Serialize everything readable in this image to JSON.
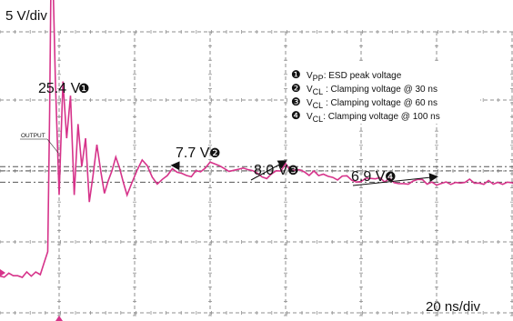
{
  "chart_data": {
    "type": "line",
    "y_scale_label": "5 V/div",
    "x_scale_label": "20 ns/div",
    "trace_label": "OUTPUT",
    "grid": true,
    "series": [
      {
        "x": [
          -60,
          -30,
          -5,
          -3,
          -2.5,
          -2,
          -1,
          0,
          1,
          2,
          3,
          4,
          5,
          6,
          7,
          8,
          10,
          12,
          15,
          18,
          22,
          26,
          30,
          35,
          40,
          45,
          50,
          55,
          60,
          70,
          80,
          90,
          100,
          110,
          120,
          130,
          140,
          150,
          160,
          170,
          180,
          190,
          200,
          210,
          220,
          230,
          240
        ],
        "values": [
          0.3,
          0.3,
          0.4,
          2.0,
          12.0,
          25.4,
          14.0,
          6.0,
          14.0,
          10.0,
          13.0,
          6.0,
          11.0,
          8.0,
          10.0,
          5.5,
          9.5,
          6.0,
          8.8,
          6.2,
          8.4,
          6.8,
          7.7,
          7.4,
          8.2,
          7.5,
          8.0,
          7.2,
          8.0,
          7.3,
          7.1,
          7.0,
          6.9,
          7.0,
          6.9,
          7.0,
          6.9,
          7.0,
          6.8,
          7.0,
          6.9,
          7.0,
          6.9,
          6.9,
          7.0,
          6.9,
          6.9
        ]
      }
    ],
    "reference_levels": [
      7.7,
      8.0,
      6.9
    ],
    "annotations": [
      {
        "text": "25.4 V",
        "marker": "❶",
        "x": -2,
        "y": 25.4
      },
      {
        "text": "7.7 V",
        "marker": "❷",
        "x": 30,
        "y": 7.7
      },
      {
        "text": "8.0 V",
        "marker": "❸",
        "x": 60,
        "y": 8.0
      },
      {
        "text": "6.9 V",
        "marker": "❹",
        "x": 100,
        "y": 6.9
      }
    ],
    "legend": {
      "placement": "top-right",
      "entries": [
        {
          "marker": "❶",
          "symbol": "V",
          "subscript": "PP",
          "text": ": ESD peak voltage"
        },
        {
          "marker": "❷",
          "symbol": "V",
          "subscript": "CL",
          "text": " : Clamping voltage @ 30 ns"
        },
        {
          "marker": "❸",
          "symbol": "V",
          "subscript": "CL",
          "text": " : Clamping voltage @ 60 ns"
        },
        {
          "marker": "❹",
          "symbol": "V",
          "subscript": "CL",
          "text": ": Clamping voltage @ 100 ns"
        }
      ]
    },
    "colors": {
      "trace": "#d6338a",
      "grid": "#8f8f8f",
      "text": "#111111",
      "arrow": "#111111"
    }
  }
}
